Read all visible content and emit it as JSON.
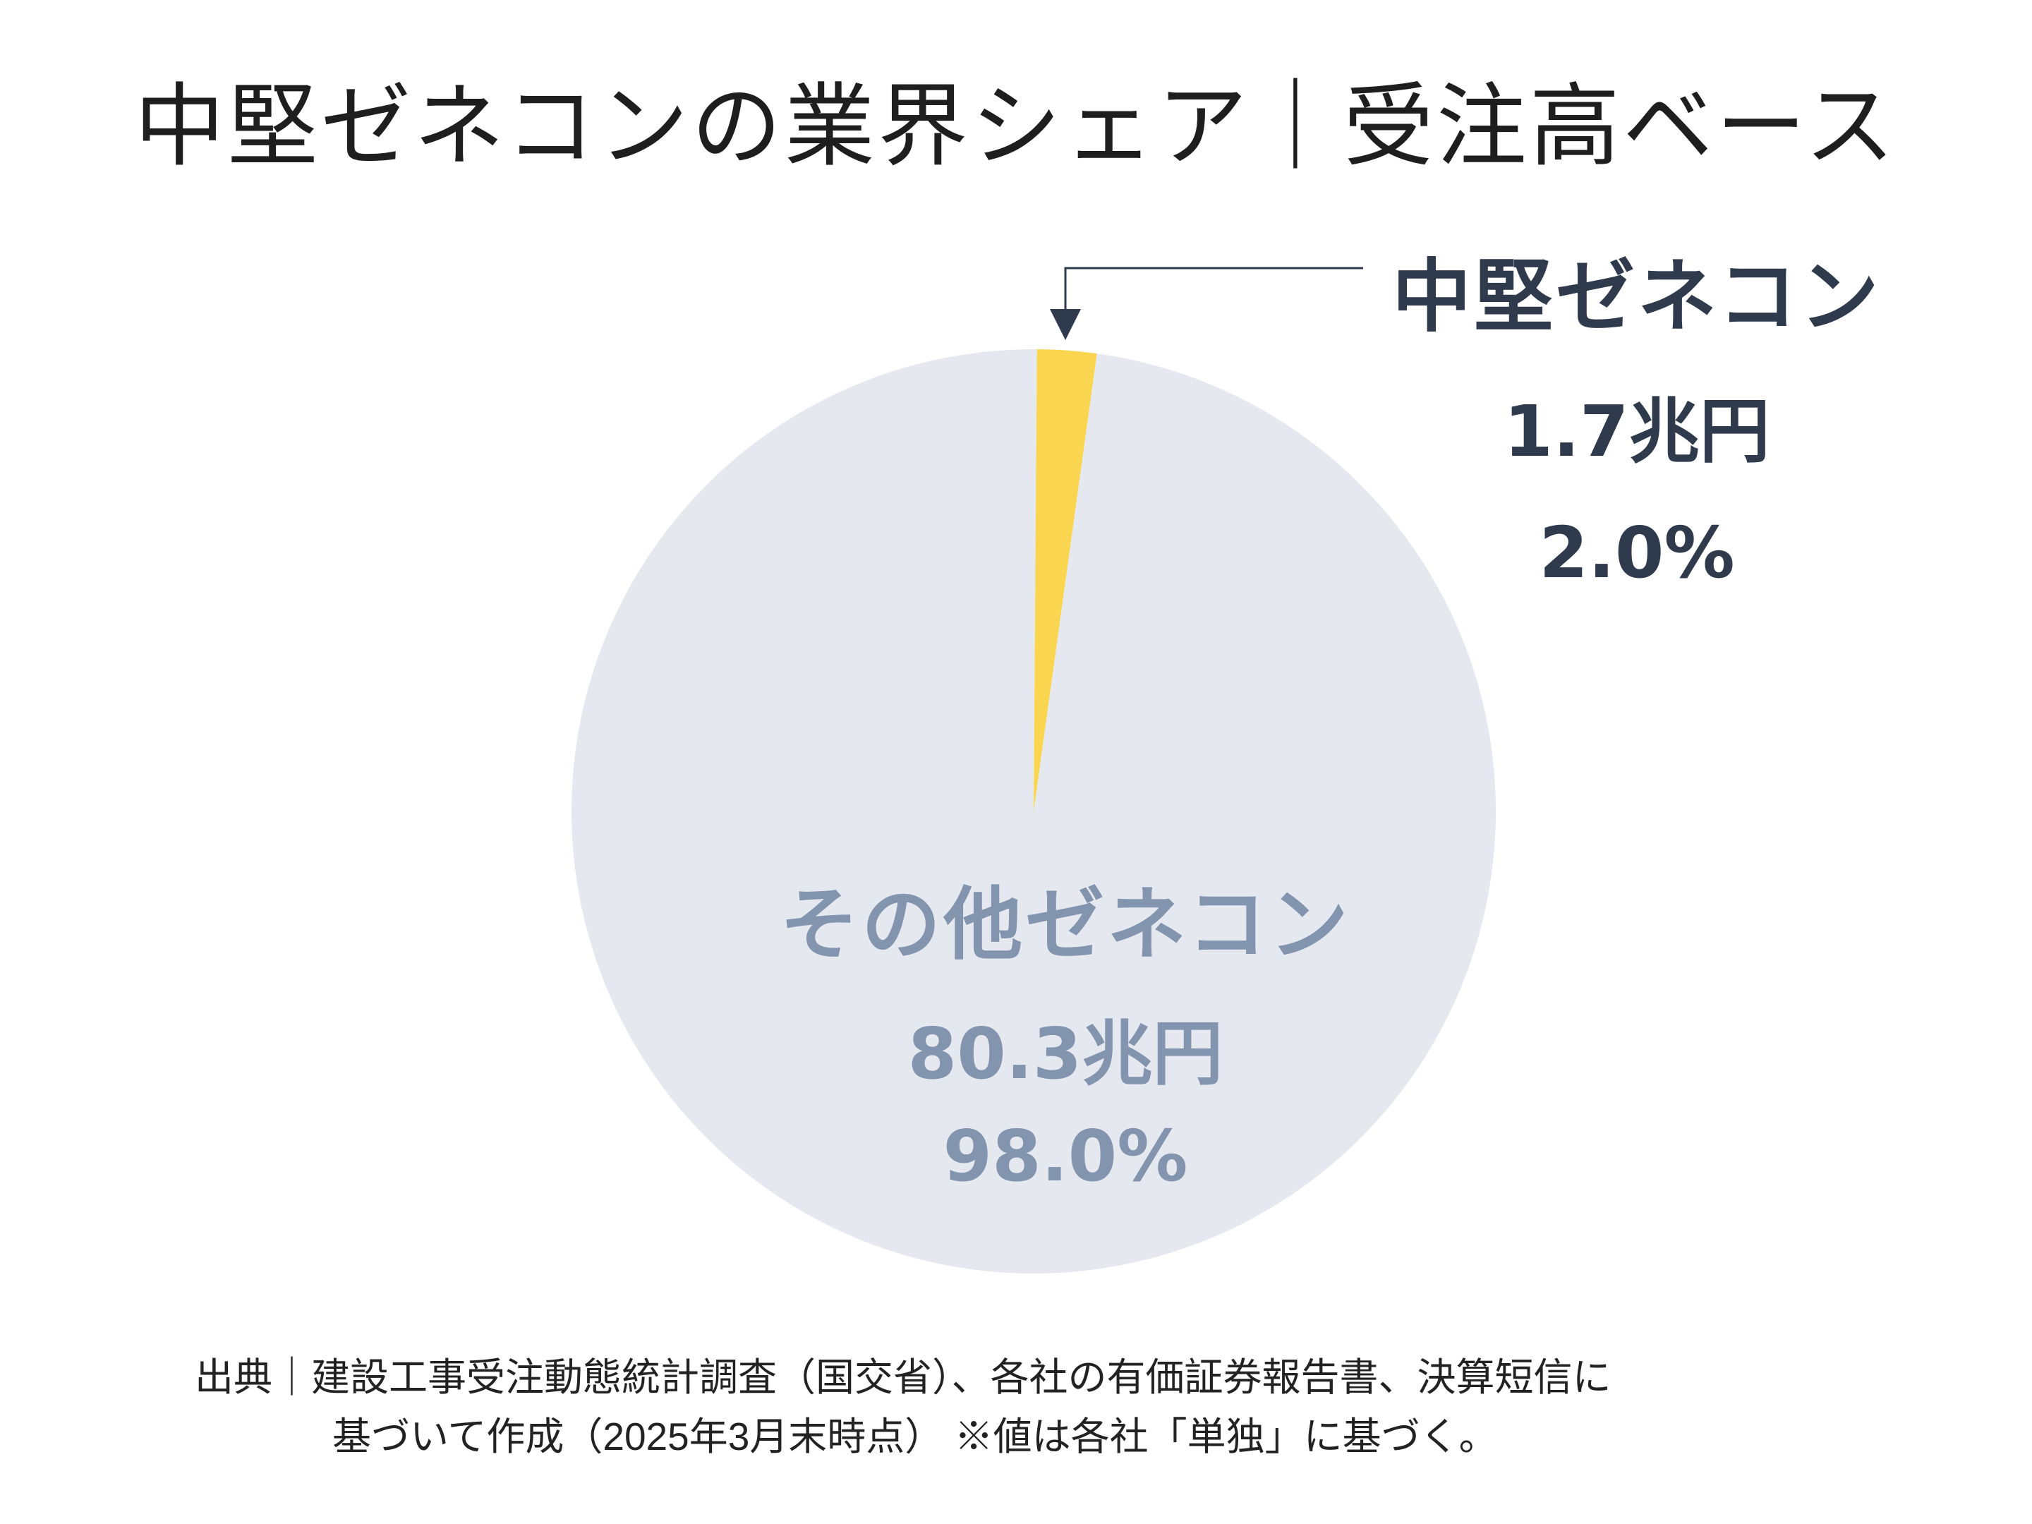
{
  "chart_data": {
    "type": "pie",
    "title": "中堅ゼネコンの業界シェア｜受注高ベース",
    "slices": [
      {
        "name": "中堅ゼネコン",
        "amount": "1.7兆円",
        "value": 1.7,
        "percent": "2.0%",
        "color": "#fad54f"
      },
      {
        "name": "その他ゼネコン",
        "amount": "80.3兆円",
        "value": 80.3,
        "percent": "98.0%",
        "color": "#e5e8ee"
      }
    ],
    "label_colors": {
      "highlight": "#2f3a4d",
      "muted": "#8394ae"
    },
    "arrow_color": "#2f3a4d"
  },
  "footnote": {
    "line1": "出典｜建設工事受注動態統計調査（国交省）、各社の有価証券報告書、決算短信に",
    "line2": "基づいて作成（2025年3月末時点） ※値は各社「単独」に基づく。"
  }
}
